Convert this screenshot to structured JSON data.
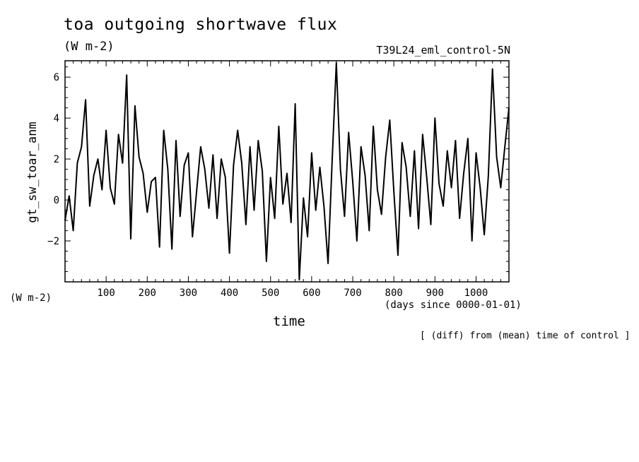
{
  "header": {
    "title": "toa outgoing shortwave flux",
    "units": "(W m-2)",
    "run_id": "T39L24_eml_control-5N",
    "units_left": "(W m-2)",
    "x_unit": "(days since 0000-01-01)",
    "note": "[ (diff) from (mean) time of control ]"
  },
  "chart_data": {
    "type": "line",
    "title": "toa outgoing shortwave flux",
    "xlabel": "time",
    "ylabel": "gt_sw_toar_anm",
    "xlim": [
      0,
      1080
    ],
    "ylim": [
      -4,
      6.8
    ],
    "xticks": [
      100,
      200,
      300,
      400,
      500,
      600,
      700,
      800,
      900,
      1000
    ],
    "yticks": [
      -2,
      0,
      2,
      4,
      6
    ],
    "grid": false,
    "legend": "none",
    "line_color": "#000000",
    "series": [
      {
        "x": [
          0,
          10,
          20,
          30,
          40,
          50,
          60,
          70,
          80,
          90,
          100,
          110,
          120,
          130,
          140,
          150,
          160,
          170,
          180,
          190,
          200,
          210,
          220,
          230,
          240,
          250,
          260,
          270,
          280,
          290,
          300,
          310,
          320,
          330,
          340,
          350,
          360,
          370,
          380,
          390,
          400,
          410,
          420,
          430,
          440,
          450,
          460,
          470,
          480,
          490,
          500,
          510,
          520,
          530,
          540,
          550,
          560,
          570,
          580,
          590,
          600,
          610,
          620,
          630,
          640,
          650,
          660,
          670,
          680,
          690,
          700,
          710,
          720,
          730,
          740,
          750,
          760,
          770,
          780,
          790,
          800,
          810,
          820,
          830,
          840,
          850,
          860,
          870,
          880,
          890,
          900,
          910,
          920,
          930,
          940,
          950,
          960,
          970,
          980,
          990,
          1000,
          1010,
          1020,
          1030,
          1040,
          1050,
          1060,
          1070,
          1080
        ],
        "values": [
          -1.0,
          0.2,
          -1.5,
          1.8,
          2.6,
          4.9,
          -0.3,
          1.2,
          2.0,
          0.5,
          3.4,
          0.6,
          -0.2,
          3.2,
          1.8,
          6.1,
          -1.9,
          4.6,
          2.1,
          1.3,
          -0.6,
          0.9,
          1.1,
          -2.3,
          3.4,
          1.5,
          -2.4,
          2.9,
          -0.8,
          1.7,
          2.3,
          -1.8,
          0.4,
          2.6,
          1.5,
          -0.4,
          2.2,
          -0.9,
          2.0,
          1.1,
          -2.6,
          1.7,
          3.4,
          1.8,
          -1.2,
          2.6,
          -0.5,
          2.9,
          1.4,
          -3.0,
          1.1,
          -0.9,
          3.6,
          -0.2,
          1.3,
          -1.1,
          4.7,
          -3.9,
          0.1,
          -1.8,
          2.3,
          -0.5,
          1.6,
          -0.3,
          -3.1,
          2.0,
          6.7,
          1.5,
          -0.8,
          3.3,
          0.9,
          -2.0,
          2.6,
          1.2,
          -1.5,
          3.6,
          0.5,
          -0.7,
          2.1,
          3.9,
          0.4,
          -2.7,
          2.8,
          1.6,
          -0.8,
          2.4,
          -1.4,
          3.2,
          1.1,
          -1.2,
          4.0,
          0.8,
          -0.3,
          2.4,
          0.6,
          2.9,
          -0.9,
          1.3,
          3.0,
          -2.0,
          2.3,
          0.6,
          -1.7,
          1.2,
          6.4,
          2.1,
          0.6,
          2.6,
          4.5
        ]
      }
    ]
  }
}
